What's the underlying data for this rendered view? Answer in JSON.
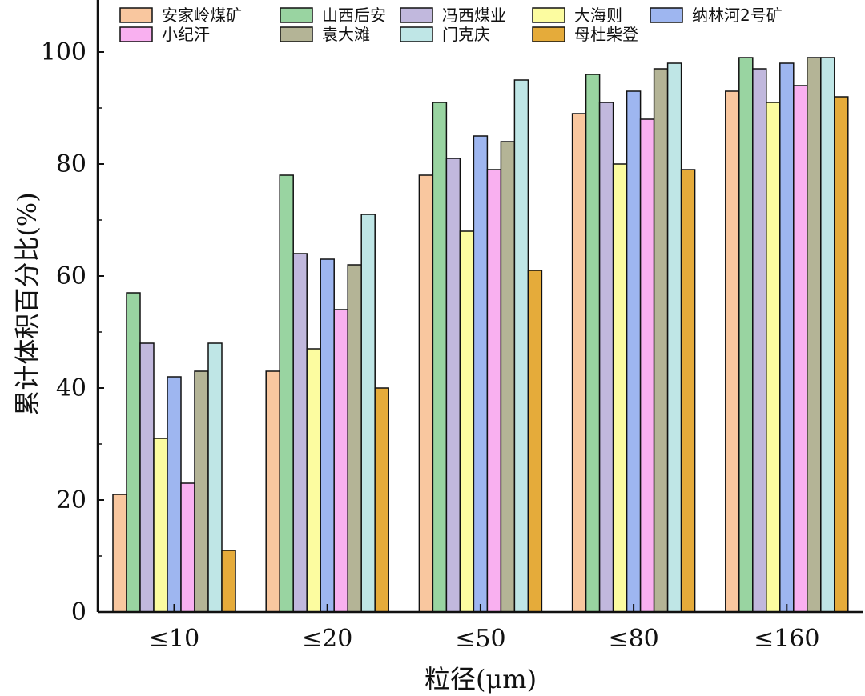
{
  "chart_data": {
    "type": "bar",
    "title": "",
    "xlabel": "粒径(μm)",
    "ylabel": "累计体积百分比(%)",
    "ylim": [
      0,
      110
    ],
    "yticks": [
      0,
      20,
      40,
      60,
      80,
      100
    ],
    "ytick_labels": [
      "0",
      "20",
      "40",
      "60",
      "80",
      "100"
    ],
    "categories": [
      "≤10",
      "≤20",
      "≤50",
      "≤80",
      "≤160"
    ],
    "legend_position": "top",
    "grid": false,
    "series": [
      {
        "name": "安家岭煤矿",
        "color": "#f9c79f",
        "values": [
          21,
          43,
          78,
          89,
          93
        ]
      },
      {
        "name": "山西后安",
        "color": "#99d4a1",
        "values": [
          57,
          78,
          91,
          96,
          99
        ]
      },
      {
        "name": "冯西煤业",
        "color": "#c1b8dd",
        "values": [
          48,
          64,
          81,
          91,
          97
        ]
      },
      {
        "name": "大海则",
        "color": "#fcfca0",
        "values": [
          31,
          47,
          68,
          80,
          91
        ]
      },
      {
        "name": "纳林河2号矿",
        "color": "#9eb6f0",
        "values": [
          42,
          63,
          85,
          93,
          98
        ]
      },
      {
        "name": "小纪汗",
        "color": "#f9b0f0",
        "values": [
          23,
          54,
          79,
          88,
          94
        ]
      },
      {
        "name": "袁大滩",
        "color": "#b4b496",
        "values": [
          43,
          62,
          84,
          97,
          99
        ]
      },
      {
        "name": "门克庆",
        "color": "#bfe6e6",
        "values": [
          48,
          71,
          95,
          98,
          99
        ]
      },
      {
        "name": "母杜柴登",
        "color": "#e5ab3a",
        "values": [
          11,
          40,
          61,
          79,
          92
        ]
      }
    ]
  }
}
